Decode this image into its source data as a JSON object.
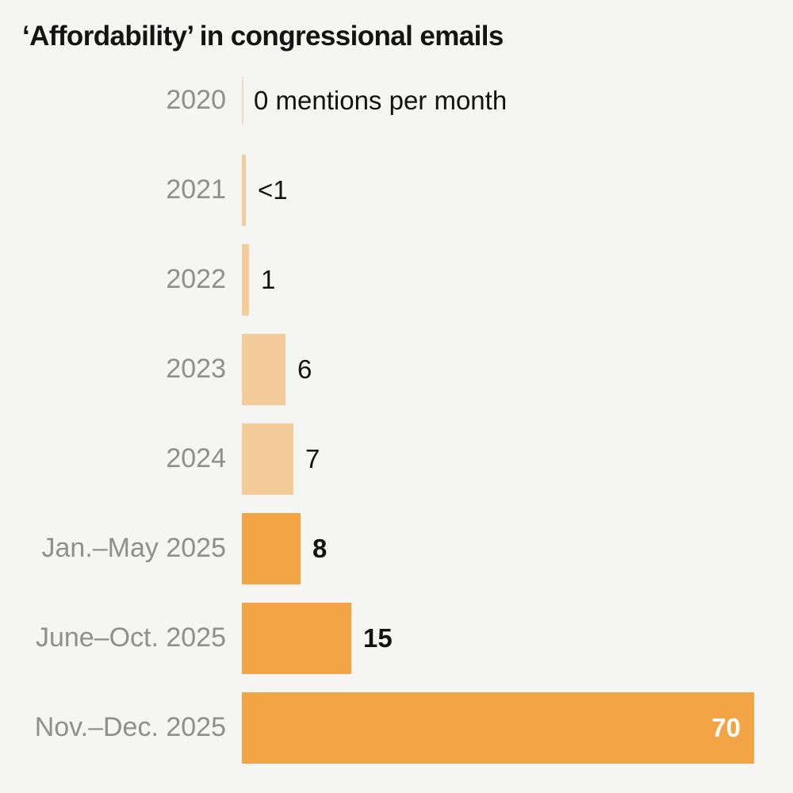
{
  "title": "‘Affordability’ in congressional emails",
  "colors": {
    "background": "#f5f5f3",
    "title_text": "#141414",
    "category_label": "#8f8f8f",
    "value_text": "#121212",
    "value_text_inside": "#ffffff",
    "bar_light": "#f4cc99",
    "bar_dark": "#f3a445",
    "zero_tick": "#f0dcbd"
  },
  "chart_data": {
    "type": "bar",
    "orientation": "horizontal",
    "title": "‘Affordability’ in congressional emails",
    "unit": "mentions per month",
    "xlabel": "",
    "ylabel": "",
    "xlim": [
      0,
      70
    ],
    "grid": false,
    "legend": false,
    "categories": [
      "2020",
      "2021",
      "2022",
      "2023",
      "2024",
      "Jan.–May 2025",
      "June–Oct. 2025",
      "Nov.–Dec. 2025"
    ],
    "values": [
      0,
      0.5,
      1,
      6,
      7,
      8,
      15,
      70
    ],
    "value_labels": [
      "0 mentions per month",
      "<1",
      "1",
      "6",
      "7",
      "8",
      "15",
      "70"
    ],
    "rows": [
      {
        "label": "2020",
        "value": 0,
        "display": "0 mentions per month",
        "shade": "light",
        "bold": false,
        "inside": false
      },
      {
        "label": "2021",
        "value": 0.5,
        "display": "<1",
        "shade": "light",
        "bold": false,
        "inside": false
      },
      {
        "label": "2022",
        "value": 1,
        "display": "1",
        "shade": "light",
        "bold": false,
        "inside": false
      },
      {
        "label": "2023",
        "value": 6,
        "display": "6",
        "shade": "light",
        "bold": false,
        "inside": false
      },
      {
        "label": "2024",
        "value": 7,
        "display": "7",
        "shade": "light",
        "bold": false,
        "inside": false
      },
      {
        "label": "Jan.–May 2025",
        "value": 8,
        "display": "8",
        "shade": "dark",
        "bold": true,
        "inside": false
      },
      {
        "label": "June–Oct. 2025",
        "value": 15,
        "display": "15",
        "shade": "dark",
        "bold": true,
        "inside": false
      },
      {
        "label": "Nov.–Dec. 2025",
        "value": 70,
        "display": "70",
        "shade": "dark",
        "bold": true,
        "inside": true
      }
    ]
  }
}
